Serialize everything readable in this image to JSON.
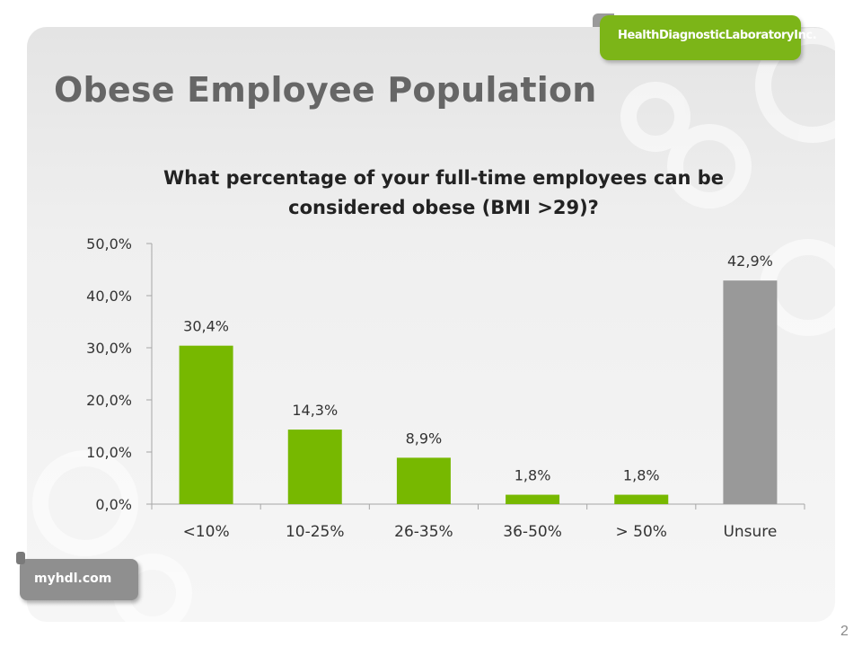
{
  "slide": {
    "title": "Obese Employee Population",
    "page_number": "2",
    "logo_top_text": "HealthDiagnosticLaboratoryInc.",
    "logo_bottom_text": "myhdl.com"
  },
  "colors": {
    "bar_green": "#77b800",
    "bar_gray": "#999999",
    "title_gray": "#666666",
    "axis_line": "#a6a6a6"
  },
  "chart_data": {
    "type": "bar",
    "title": "What percentage of your full-time employees can be considered obese (BMI >29)?",
    "title_lines": [
      "What percentage of your full-time employees can be",
      "considered obese (BMI >29)?"
    ],
    "categories": [
      "<10%",
      "10-25%",
      "26-35%",
      "36-50%",
      "> 50%",
      "Unsure"
    ],
    "values": [
      30.4,
      14.3,
      8.9,
      1.8,
      1.8,
      42.9
    ],
    "data_labels": [
      "30,4%",
      "14,3%",
      "8,9%",
      "1,8%",
      "1,8%",
      "42,9%"
    ],
    "bar_colors": [
      "green",
      "green",
      "green",
      "green",
      "green",
      "gray"
    ],
    "ylim": [
      0,
      50
    ],
    "yticks": [
      0,
      10,
      20,
      30,
      40,
      50
    ],
    "ytick_labels": [
      "0,0%",
      "10,0%",
      "20,0%",
      "30,0%",
      "40,0%",
      "50,0%"
    ],
    "xlabel": "",
    "ylabel": "",
    "grid": false,
    "legend": "none"
  }
}
